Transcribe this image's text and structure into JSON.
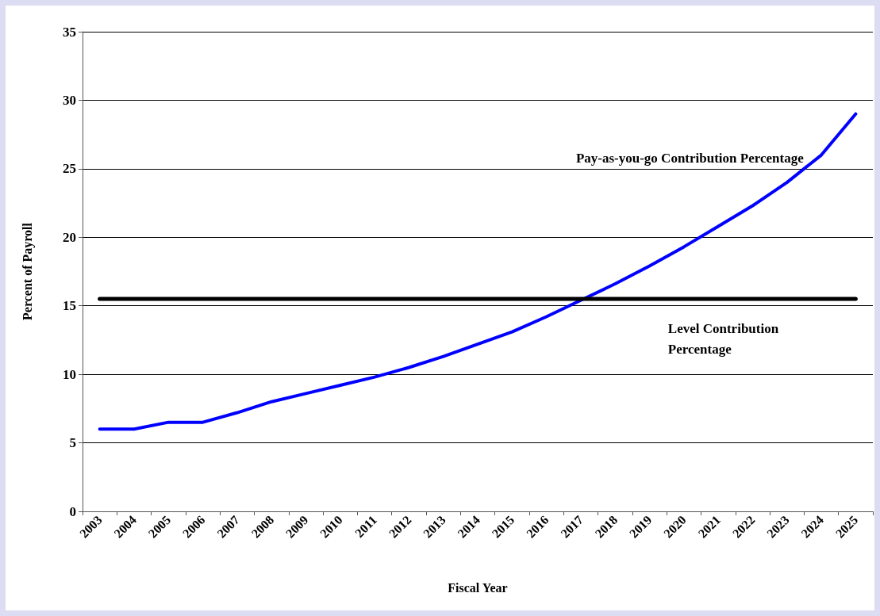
{
  "chart_data": {
    "type": "line",
    "xlabel": "Fiscal Year",
    "ylabel": "Percent of Payroll",
    "categories": [
      "2003",
      "2004",
      "2005",
      "2006",
      "2007",
      "2008",
      "2009",
      "2010",
      "2011",
      "2012",
      "2013",
      "2014",
      "2015",
      "2016",
      "2017",
      "2018",
      "2019",
      "2020",
      "2021",
      "2022",
      "2023",
      "2024",
      "2025"
    ],
    "series": [
      {
        "name": "Pay-as-you-go Contribution Percentage",
        "color": "#0000ff",
        "values": [
          6.0,
          6.0,
          6.5,
          6.5,
          7.2,
          8.0,
          8.6,
          9.2,
          9.8,
          10.5,
          11.3,
          12.2,
          13.1,
          14.2,
          15.4,
          16.6,
          17.9,
          19.3,
          20.8,
          22.3,
          24.0,
          26.0,
          29.0
        ]
      },
      {
        "name": "Level Contribution Percentage",
        "color": "#000000",
        "values": [
          15.5,
          15.5,
          15.5,
          15.5,
          15.5,
          15.5,
          15.5,
          15.5,
          15.5,
          15.5,
          15.5,
          15.5,
          15.5,
          15.5,
          15.5,
          15.5,
          15.5,
          15.5,
          15.5,
          15.5,
          15.5,
          15.5,
          15.5
        ]
      }
    ],
    "ylim": [
      0,
      35
    ],
    "yticks": [
      0,
      5,
      10,
      15,
      20,
      25,
      30,
      35
    ],
    "grid": "y",
    "legend": false,
    "marker": "none",
    "line_style": "solid"
  }
}
